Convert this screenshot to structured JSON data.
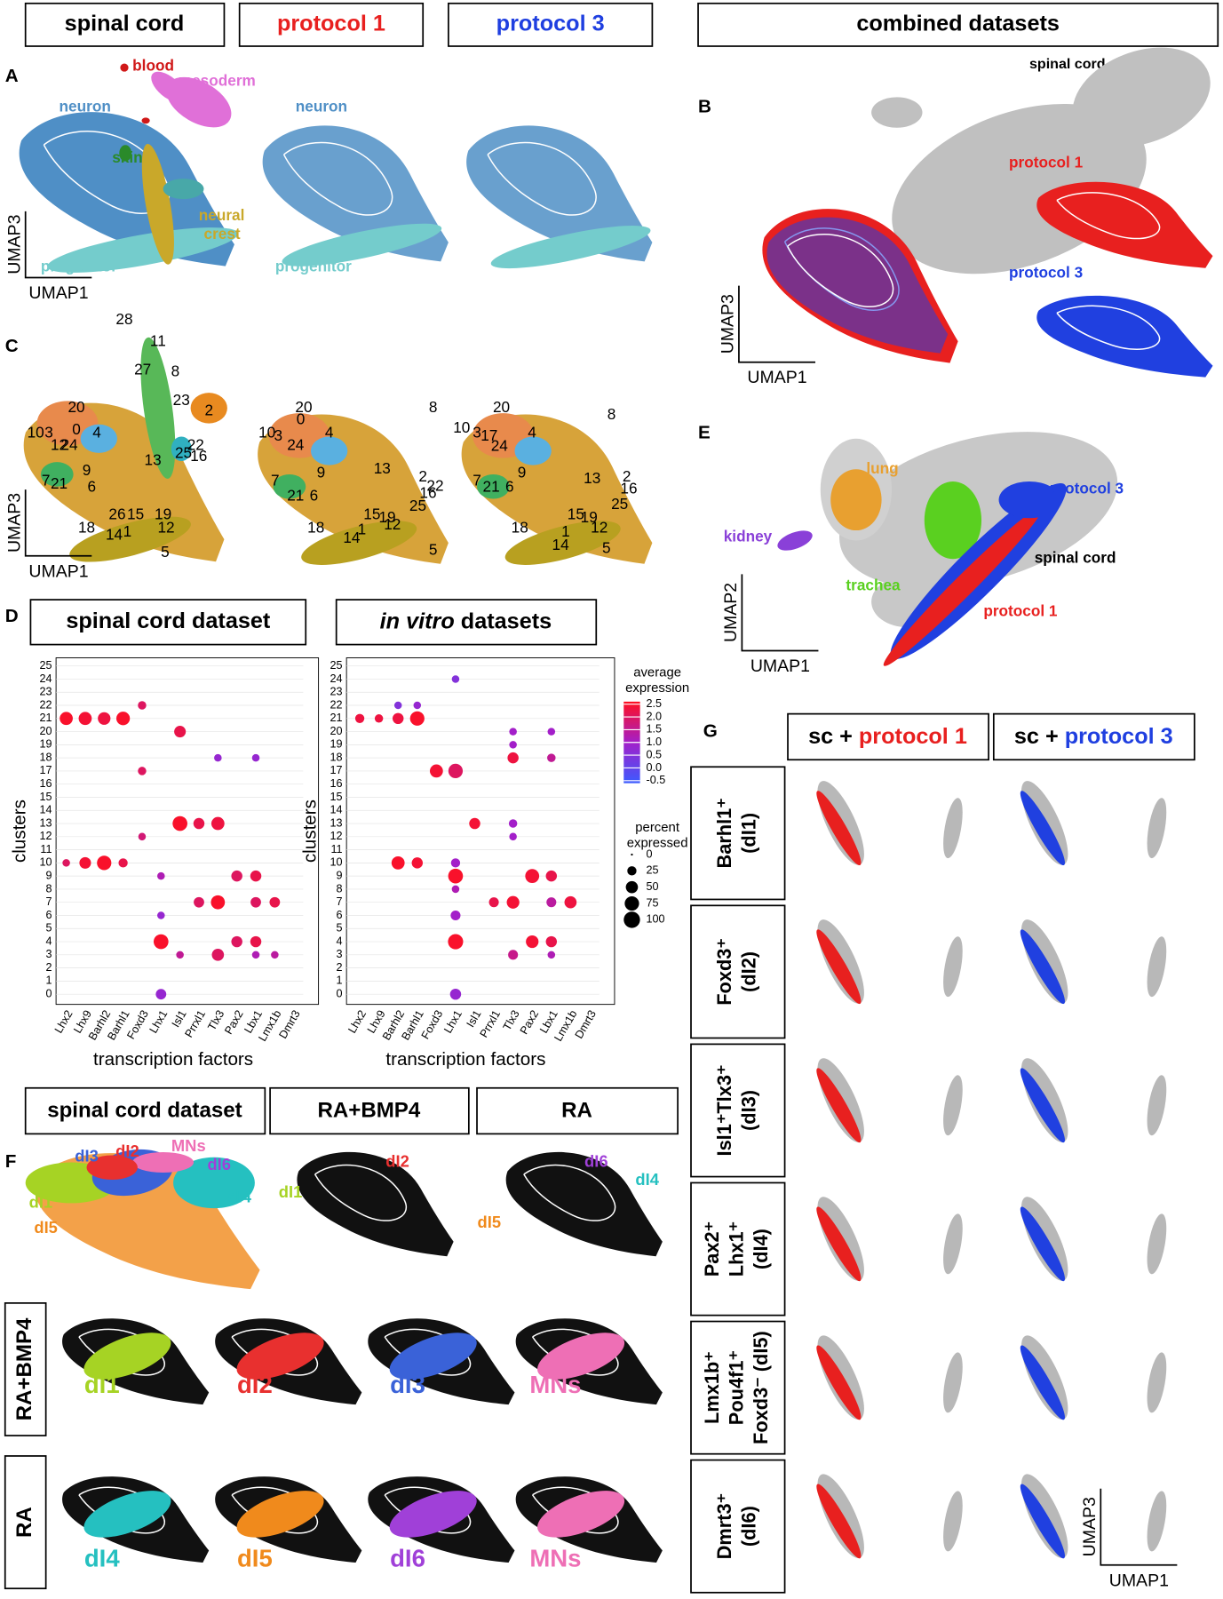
{
  "headers": {
    "spinal_cord": "spinal cord",
    "protocol_1": "protocol 1",
    "protocol_3": "protocol 3",
    "combined": "combined datasets"
  },
  "panel_a": {
    "letter": "A",
    "blood": "blood",
    "mesoderm": "mesoderm",
    "neuron": "neuron",
    "skin": "skin",
    "neural_crest": [
      "neural",
      "crest"
    ],
    "progenitor": "progenitor",
    "neuron_2": "neuron",
    "progenitor_2": "progenitor",
    "axis_y": "UMAP3",
    "axis_x": "UMAP1"
  },
  "panel_b": {
    "letter": "B",
    "spinal_cord": "spinal cord",
    "protocol_1": "protocol 1",
    "protocol_3": "protocol 3",
    "axis_y": "UMAP3",
    "axis_x": "UMAP1"
  },
  "panel_c": {
    "letter": "C",
    "axis_y": "UMAP3",
    "axis_x": "UMAP1",
    "plots": [
      [
        "28",
        "11",
        "27",
        "8",
        "20",
        "10",
        "3",
        "0",
        "12",
        "24",
        "4",
        "23",
        "2",
        "9",
        "13",
        "7",
        "21",
        "6",
        "22",
        "25",
        "16",
        "26",
        "15",
        "19",
        "12",
        "18",
        "14",
        "1",
        "5"
      ],
      [
        "20",
        "0",
        "10",
        "3",
        "24",
        "4",
        "8",
        "9",
        "13",
        "7",
        "21",
        "6",
        "2",
        "22",
        "16",
        "18",
        "15",
        "19",
        "12",
        "25",
        "1",
        "14",
        "5"
      ],
      [
        "20",
        "10",
        "3",
        "17",
        "24",
        "4",
        "8",
        "9",
        "13",
        "7",
        "21",
        "6",
        "2",
        "16",
        "15",
        "19",
        "12",
        "25",
        "18",
        "1",
        "14",
        "5"
      ]
    ]
  },
  "panel_e": {
    "letter": "E",
    "lung": "lung",
    "kidney": "kidney",
    "trachea": "trachea",
    "protocol_3": "protocol 3",
    "spinal_cord": "spinal cord",
    "protocol_1": "protocol 1",
    "axis_y": "UMAP2",
    "axis_x": "UMAP1"
  },
  "panel_d": {
    "letter": "D",
    "title_left": "spinal cord dataset",
    "title_right": {
      "italic": "in vitro",
      "rest": " datasets"
    },
    "y_label": "clusters",
    "x_label": "transcription factors",
    "clusters": [
      0,
      1,
      2,
      3,
      4,
      5,
      6,
      7,
      8,
      9,
      10,
      11,
      12,
      13,
      14,
      15,
      16,
      17,
      18,
      19,
      20,
      21,
      22,
      23,
      24,
      25
    ],
    "genes": [
      "Lhx2",
      "Lhx9",
      "Barhl2",
      "Barhl1",
      "Foxd3",
      "Lhx1",
      "Isl1",
      "Prrxl1",
      "Tlx3",
      "Pax2",
      "Lbx1",
      "Lmx1b",
      "Dmrt3"
    ],
    "legend": {
      "expression_title": [
        "average",
        "expression"
      ],
      "expression_lim": [
        -0.6,
        2.6
      ],
      "expression_colors": [
        "#3b5bff",
        "#a31fc9",
        "#ff1020"
      ],
      "expression_ticks": [
        2.5,
        {
          "value": 2,
          "label": "2.0"
        },
        1.5,
        {
          "value": 1,
          "label": "1.0"
        },
        0.5,
        {
          "value": 0,
          "label": "0.0"
        },
        -0.5
      ],
      "percent_title": [
        "percent",
        "expressed"
      ],
      "percent_ticks": [
        0,
        25,
        50,
        75,
        100
      ]
    },
    "dots": {
      "left": [
        [
          0,
          21,
          60,
          2.5
        ],
        [
          1,
          21,
          60,
          2.4
        ],
        [
          2,
          21,
          55,
          2.3
        ],
        [
          3,
          21,
          65,
          2.5
        ],
        [
          4,
          22,
          20,
          2.0
        ],
        [
          6,
          20,
          45,
          2.2
        ],
        [
          4,
          17,
          20,
          2.0
        ],
        [
          6,
          13,
          80,
          2.5
        ],
        [
          7,
          13,
          40,
          2.2
        ],
        [
          8,
          13,
          60,
          2.3
        ],
        [
          4,
          12,
          15,
          1.8
        ],
        [
          0,
          10,
          15,
          2.0
        ],
        [
          1,
          10,
          45,
          2.4
        ],
        [
          2,
          10,
          75,
          2.5
        ],
        [
          3,
          10,
          25,
          2.2
        ],
        [
          5,
          9,
          15,
          1.2
        ],
        [
          9,
          9,
          40,
          2.0
        ],
        [
          10,
          9,
          40,
          2.2
        ],
        [
          7,
          7,
          35,
          2.0
        ],
        [
          8,
          7,
          70,
          2.5
        ],
        [
          10,
          7,
          35,
          2.0
        ],
        [
          11,
          7,
          35,
          2.2
        ],
        [
          5,
          6,
          15,
          0.8
        ],
        [
          5,
          4,
          80,
          2.5
        ],
        [
          9,
          4,
          40,
          2.0
        ],
        [
          10,
          4,
          40,
          2.2
        ],
        [
          6,
          3,
          15,
          1.5
        ],
        [
          8,
          3,
          50,
          2.0
        ],
        [
          10,
          3,
          15,
          1.2
        ],
        [
          11,
          3,
          15,
          1.4
        ],
        [
          5,
          0,
          35,
          0.8
        ],
        [
          8,
          18,
          15,
          0.8
        ],
        [
          10,
          18,
          15,
          0.8
        ]
      ],
      "right": [
        [
          0,
          21,
          25,
          2.3
        ],
        [
          1,
          21,
          20,
          2.3
        ],
        [
          2,
          21,
          40,
          2.3
        ],
        [
          3,
          21,
          75,
          2.5
        ],
        [
          2,
          22,
          15,
          0.5
        ],
        [
          3,
          22,
          15,
          0.8
        ],
        [
          4,
          17,
          60,
          2.4
        ],
        [
          5,
          17,
          75,
          2.0
        ],
        [
          8,
          20,
          15,
          1.0
        ],
        [
          10,
          20,
          15,
          1.0
        ],
        [
          8,
          19,
          15,
          1.0
        ],
        [
          8,
          18,
          40,
          2.3
        ],
        [
          10,
          18,
          20,
          1.5
        ],
        [
          6,
          13,
          40,
          2.4
        ],
        [
          8,
          13,
          20,
          1.0
        ],
        [
          8,
          12,
          15,
          1.0
        ],
        [
          2,
          10,
          60,
          2.5
        ],
        [
          3,
          10,
          40,
          2.4
        ],
        [
          5,
          10,
          25,
          1.0
        ],
        [
          5,
          9,
          80,
          2.5
        ],
        [
          9,
          9,
          70,
          2.4
        ],
        [
          10,
          9,
          40,
          2.2
        ],
        [
          5,
          8,
          15,
          1.2
        ],
        [
          7,
          7,
          30,
          2.2
        ],
        [
          8,
          7,
          55,
          2.4
        ],
        [
          10,
          7,
          30,
          1.4
        ],
        [
          11,
          7,
          50,
          2.3
        ],
        [
          5,
          6,
          30,
          1.0
        ],
        [
          5,
          4,
          85,
          2.5
        ],
        [
          9,
          4,
          55,
          2.4
        ],
        [
          10,
          4,
          40,
          2.2
        ],
        [
          8,
          3,
          30,
          1.6
        ],
        [
          10,
          3,
          15,
          1.2
        ],
        [
          5,
          0,
          40,
          0.8
        ],
        [
          5,
          24,
          15,
          0.5
        ]
      ]
    }
  },
  "panel_f": {
    "letter": "F",
    "title_sc": "spinal cord dataset",
    "title_rabmp4": "RA+BMP4",
    "title_ra": "RA",
    "populations": [
      {
        "name": "dI1",
        "color": "#a6d324"
      },
      {
        "name": "dI2",
        "color": "#e8302f"
      },
      {
        "name": "dI3",
        "color": "#3a62d8"
      },
      {
        "name": "dI4",
        "color": "#25c0c0"
      },
      {
        "name": "dI5",
        "color": "#f08a1c"
      },
      {
        "name": "dI6",
        "color": "#a040d8"
      },
      {
        "name": "MNs",
        "color": "#ee6fb5"
      }
    ]
  },
  "panel_g": {
    "letter": "G",
    "col_1": {
      "prefix": "sc + ",
      "protocol": "protocol 1"
    },
    "col_2": {
      "prefix": "sc + ",
      "protocol": "protocol 3"
    },
    "rows": [
      [
        "Barhl1⁺",
        "(dI1)"
      ],
      [
        "Foxd3⁺",
        "(dI2)"
      ],
      [
        "Isl1⁺Tlx3⁺",
        "(dI3)"
      ],
      [
        "Pax2⁺",
        "Lhx1⁺",
        "(dI4)"
      ],
      [
        "Lmx1b⁺",
        "Pou4f1⁺",
        "Foxd3⁻ (dI5)"
      ],
      [
        "Dmrt3⁺",
        "(dI6)"
      ]
    ],
    "axis_y": "UMAP3",
    "axis_x": "UMAP1"
  }
}
